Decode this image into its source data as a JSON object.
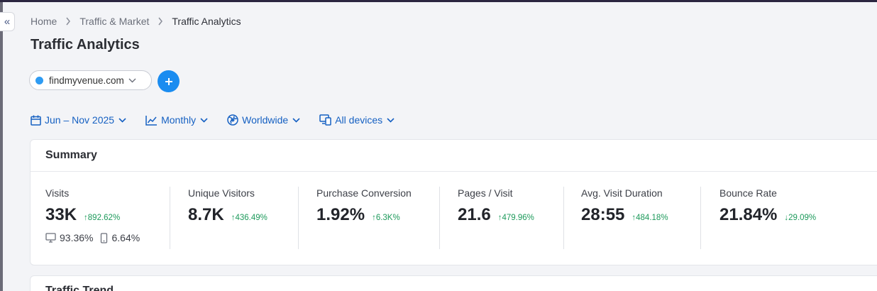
{
  "breadcrumb": {
    "items": [
      "Home",
      "Traffic & Market"
    ],
    "current": "Traffic Analytics"
  },
  "page": {
    "title": "Traffic Analytics"
  },
  "domain": {
    "label": "findmyvenue.com",
    "color": "#2e9cf3"
  },
  "filters": {
    "date": "Jun – Nov 2025",
    "granularity": "Monthly",
    "region": "Worldwide",
    "devices": "All devices"
  },
  "summary": {
    "title": "Summary",
    "metrics": [
      {
        "label": "Visits",
        "value": "33K",
        "change": "↑892.62%",
        "direction": "up"
      },
      {
        "label": "Unique Visitors",
        "value": "8.7K",
        "change": "↑436.49%",
        "direction": "up"
      },
      {
        "label": "Purchase Conversion",
        "value": "1.92%",
        "change": "↑6.3K%",
        "direction": "up"
      },
      {
        "label": "Pages / Visit",
        "value": "21.6",
        "change": "↑479.96%",
        "direction": "up"
      },
      {
        "label": "Avg. Visit Duration",
        "value": "28:55",
        "change": "↑484.18%",
        "direction": "up"
      },
      {
        "label": "Bounce Rate",
        "value": "21.84%",
        "change": "↓29.09%",
        "direction": "down"
      }
    ],
    "device_split": {
      "desktop": "93.36%",
      "mobile": "6.64%"
    }
  },
  "trend": {
    "title": "Traffic Trend"
  },
  "colors": {
    "accent": "#1a8cf0",
    "link": "#1560c2",
    "positive": "#1d9a5b"
  }
}
